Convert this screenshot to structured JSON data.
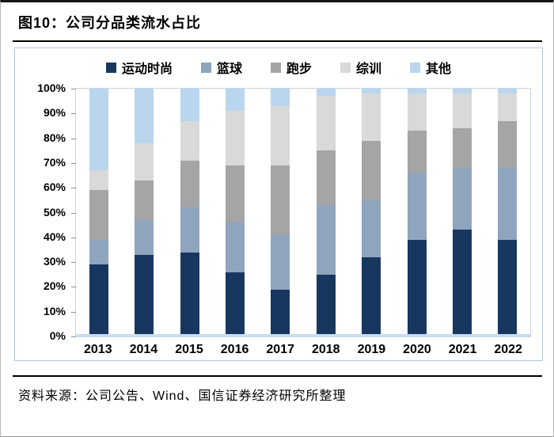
{
  "header": {
    "title": "图10：公司分品类流水占比"
  },
  "footer": {
    "source": "资料来源：公司公告、Wind、国信证券经济研究所整理"
  },
  "chart_data": {
    "type": "bar",
    "subtype": "stacked-percent",
    "title": "图10：公司分品类流水占比",
    "categories": [
      "2013",
      "2014",
      "2015",
      "2016",
      "2017",
      "2018",
      "2019",
      "2020",
      "2021",
      "2022"
    ],
    "series": [
      {
        "name": "运动时尚",
        "color": "#17375e",
        "values": [
          29,
          33,
          34,
          26,
          19,
          25,
          32,
          39,
          43,
          39
        ]
      },
      {
        "name": "篮球",
        "color": "#8fa5bd",
        "values": [
          10,
          14,
          18,
          20,
          22,
          28,
          23,
          27,
          25,
          29
        ]
      },
      {
        "name": "跑步",
        "color": "#a5a5a5",
        "values": [
          20,
          16,
          19,
          23,
          28,
          22,
          24,
          17,
          16,
          19
        ]
      },
      {
        "name": "综训",
        "color": "#d9d9d9",
        "values": [
          8,
          15,
          16,
          22,
          24,
          22,
          19,
          15,
          14,
          11
        ]
      },
      {
        "name": "其他",
        "color": "#bad5ee",
        "values": [
          33,
          22,
          13,
          9,
          7,
          3,
          2,
          2,
          2,
          2
        ]
      }
    ],
    "xlabel": "",
    "ylabel": "",
    "ylim": [
      0,
      100
    ],
    "yticks": [
      "0%",
      "10%",
      "20%",
      "30%",
      "40%",
      "50%",
      "60%",
      "70%",
      "80%",
      "90%",
      "100%"
    ],
    "legend_position": "top",
    "grid": false
  }
}
